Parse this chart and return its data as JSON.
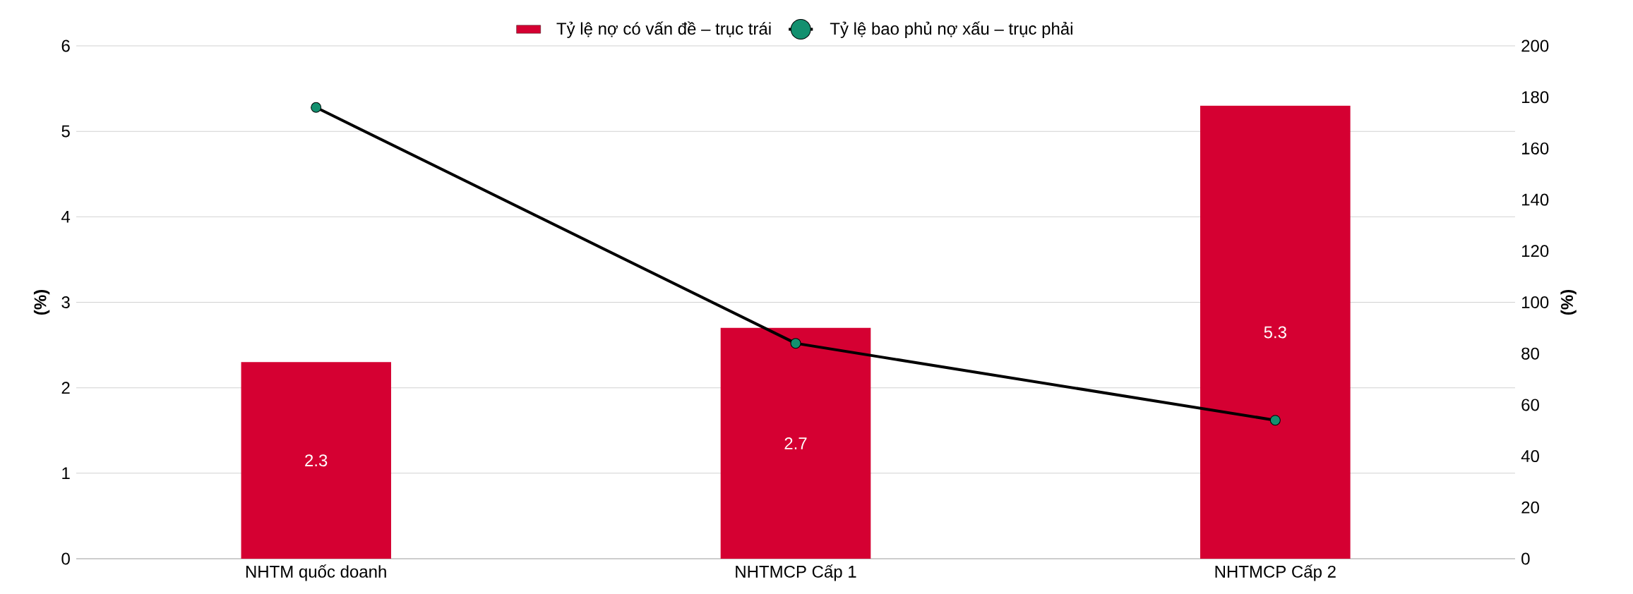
{
  "chart_data": {
    "type": "bar",
    "categories": [
      "NHTM quốc doanh",
      "NHTMCP Cấp 1",
      "NHTMCP Cấp 2"
    ],
    "series": [
      {
        "name": "Tỷ lệ nợ có vấn đề – trục trái",
        "color": "#d50032",
        "values": [
          2.3,
          2.7,
          5.3
        ],
        "value_labels": [
          "2.3",
          "2.7",
          "5.3"
        ]
      },
      {
        "name": "Tỷ lệ bao phủ nợ xấu – trục phải",
        "type": "line",
        "axis": "y2",
        "color": "#000000",
        "marker": "circle",
        "line_style": "solid",
        "values": [
          176,
          84,
          54
        ]
      }
    ],
    "ylabel": "(%)",
    "y2label": "(%)",
    "ylim": [
      0,
      6
    ],
    "yticks": [
      0,
      1,
      2,
      3,
      4,
      5,
      6
    ],
    "y2lim": [
      0,
      200
    ],
    "y2ticks": [
      0,
      20,
      40,
      60,
      80,
      100,
      120,
      140,
      160,
      180,
      200
    ],
    "grid": "y",
    "legend": "top"
  }
}
